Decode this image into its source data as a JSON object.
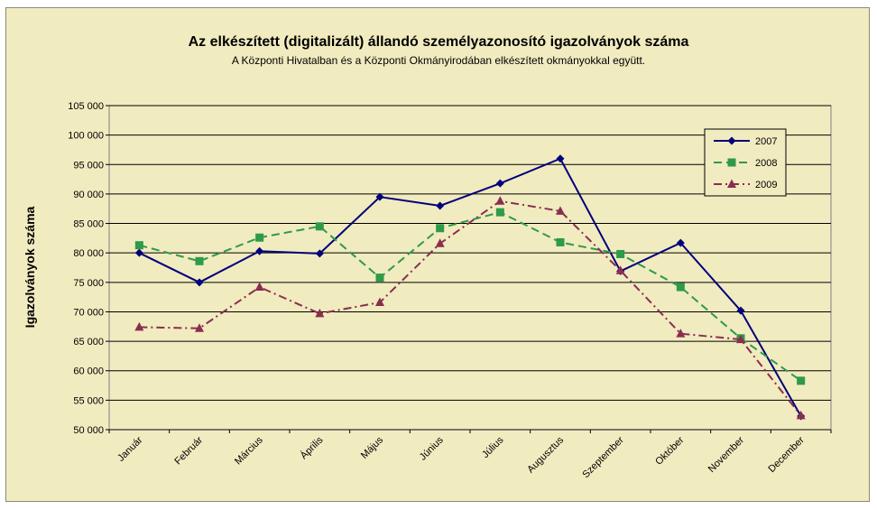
{
  "chart_data": {
    "type": "line",
    "title": "Az elkészített (digitalizált) állandó személyazonosító igazolványok száma",
    "subtitle": "A Központi Hivatalban és a Központi Okmányirodában elkészített okmányokkal együtt.",
    "ylabel": "Igazolványok száma",
    "xlabel": "",
    "categories": [
      "Január",
      "Február",
      "Március",
      "Április",
      "Május",
      "Június",
      "Július",
      "Augusztus",
      "Szeptember",
      "Október",
      "November",
      "December"
    ],
    "ylim": [
      50000,
      105000
    ],
    "ytick_step": 5000,
    "ytick_labels": [
      "50 000",
      "55 000",
      "60 000",
      "65 000",
      "70 000",
      "75 000",
      "80 000",
      "85 000",
      "90 000",
      "95 000",
      "100 000",
      "105 000"
    ],
    "grid": true,
    "legend_position": "top-right",
    "series": [
      {
        "name": "2007",
        "color": "#00007a",
        "dash": "solid",
        "marker": "diamond",
        "values": [
          80000,
          75000,
          80300,
          79900,
          89500,
          88000,
          91800,
          96000,
          76900,
          81700,
          70200,
          52300
        ]
      },
      {
        "name": "2008",
        "color": "#2e9a4a",
        "dash": "dashed",
        "marker": "square",
        "values": [
          81300,
          78600,
          82600,
          84500,
          75800,
          84200,
          86900,
          81800,
          79800,
          74200,
          65500,
          58300
        ]
      },
      {
        "name": "2009",
        "color": "#8a2d4f",
        "dash": "dashdot",
        "marker": "triangle",
        "values": [
          67400,
          67200,
          74200,
          69700,
          71600,
          81600,
          88800,
          87100,
          77000,
          66300,
          65300,
          52400
        ]
      }
    ]
  }
}
